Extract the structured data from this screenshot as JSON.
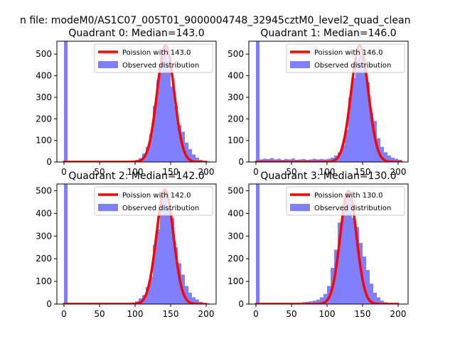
{
  "suptitle": "n file: modeM0/AS1C07_005T01_9000004748_32945cztM0_level2_quad_clean",
  "colors": {
    "hist": "#8080ff",
    "fit": "#ff0000",
    "frame": "#000000"
  },
  "chart_data": [
    {
      "type": "bar",
      "title": "Quadrant 0: Median=143.0",
      "legend": [
        "Poission with 143.0",
        "Observed distribution"
      ],
      "legend_position": "top-right",
      "xlim": [
        -10,
        214
      ],
      "ylim": [
        0,
        560
      ],
      "xticks": [
        0,
        50,
        100,
        150,
        200
      ],
      "xtick_labels": [
        "0",
        "50",
        "100",
        "150",
        "200"
      ],
      "yticks": [
        0,
        100,
        200,
        300,
        400,
        500
      ],
      "ytick_labels": [
        "0",
        "100",
        "200",
        "300",
        "400",
        "500"
      ],
      "bin_width": 5,
      "bins": [
        {
          "x": 0,
          "y": 560
        },
        {
          "x": 100,
          "y": 10
        },
        {
          "x": 105,
          "y": 18
        },
        {
          "x": 110,
          "y": 40
        },
        {
          "x": 115,
          "y": 70
        },
        {
          "x": 120,
          "y": 130
        },
        {
          "x": 125,
          "y": 260
        },
        {
          "x": 130,
          "y": 380
        },
        {
          "x": 135,
          "y": 500
        },
        {
          "x": 140,
          "y": 540
        },
        {
          "x": 145,
          "y": 470
        },
        {
          "x": 150,
          "y": 350
        },
        {
          "x": 155,
          "y": 260
        },
        {
          "x": 160,
          "y": 170
        },
        {
          "x": 165,
          "y": 140
        },
        {
          "x": 170,
          "y": 90
        },
        {
          "x": 175,
          "y": 60
        },
        {
          "x": 180,
          "y": 35
        },
        {
          "x": 185,
          "y": 20
        },
        {
          "x": 190,
          "y": 10
        },
        {
          "x": 195,
          "y": 5
        },
        {
          "x": 200,
          "y": 3
        }
      ],
      "fit": {
        "lambda": 143.0,
        "peak": 540,
        "x_range": [
          0,
          200
        ]
      }
    },
    {
      "type": "bar",
      "title": "Quadrant 1: Median=146.0",
      "legend": [
        "Poission with 146.0",
        "Observed distribution"
      ],
      "legend_position": "top-right",
      "xlim": [
        -10,
        214
      ],
      "ylim": [
        0,
        560
      ],
      "xticks": [
        0,
        50,
        100,
        150,
        200
      ],
      "xtick_labels": [
        "0",
        "50",
        "100",
        "150",
        "200"
      ],
      "yticks": [
        0,
        100,
        200,
        300,
        400,
        500
      ],
      "ytick_labels": [
        "0",
        "100",
        "200",
        "300",
        "400",
        "500"
      ],
      "bin_width": 5,
      "bins": [
        {
          "x": 0,
          "y": 560
        },
        {
          "x": 5,
          "y": 12
        },
        {
          "x": 10,
          "y": 15
        },
        {
          "x": 15,
          "y": 14
        },
        {
          "x": 20,
          "y": 18
        },
        {
          "x": 25,
          "y": 12
        },
        {
          "x": 30,
          "y": 15
        },
        {
          "x": 35,
          "y": 10
        },
        {
          "x": 40,
          "y": 14
        },
        {
          "x": 45,
          "y": 12
        },
        {
          "x": 50,
          "y": 16
        },
        {
          "x": 55,
          "y": 10
        },
        {
          "x": 60,
          "y": 12
        },
        {
          "x": 65,
          "y": 14
        },
        {
          "x": 70,
          "y": 10
        },
        {
          "x": 75,
          "y": 12
        },
        {
          "x": 80,
          "y": 15
        },
        {
          "x": 85,
          "y": 12
        },
        {
          "x": 90,
          "y": 14
        },
        {
          "x": 95,
          "y": 12
        },
        {
          "x": 100,
          "y": 15
        },
        {
          "x": 105,
          "y": 20
        },
        {
          "x": 110,
          "y": 30
        },
        {
          "x": 115,
          "y": 45
        },
        {
          "x": 120,
          "y": 80
        },
        {
          "x": 125,
          "y": 150
        },
        {
          "x": 130,
          "y": 300
        },
        {
          "x": 135,
          "y": 390
        },
        {
          "x": 140,
          "y": 480
        },
        {
          "x": 145,
          "y": 520
        },
        {
          "x": 150,
          "y": 460
        },
        {
          "x": 155,
          "y": 370
        },
        {
          "x": 160,
          "y": 230
        },
        {
          "x": 165,
          "y": 190
        },
        {
          "x": 170,
          "y": 110
        },
        {
          "x": 175,
          "y": 70
        },
        {
          "x": 180,
          "y": 45
        },
        {
          "x": 185,
          "y": 30
        },
        {
          "x": 190,
          "y": 20
        },
        {
          "x": 195,
          "y": 15
        },
        {
          "x": 200,
          "y": 10
        }
      ],
      "fit": {
        "lambda": 146.0,
        "peak": 540,
        "x_range": [
          0,
          205
        ]
      }
    },
    {
      "type": "bar",
      "title": "Quadrant 2: Median=142.0",
      "legend": [
        "Poission with 142.0",
        "Observed distribution"
      ],
      "legend_position": "top-right",
      "xlim": [
        -10,
        214
      ],
      "ylim": [
        0,
        530
      ],
      "xticks": [
        0,
        50,
        100,
        150,
        200
      ],
      "xtick_labels": [
        "0",
        "50",
        "100",
        "150",
        "200"
      ],
      "yticks": [
        0,
        100,
        200,
        300,
        400,
        500
      ],
      "ytick_labels": [
        "0",
        "100",
        "200",
        "300",
        "400",
        "500"
      ],
      "bin_width": 5,
      "bins": [
        {
          "x": 0,
          "y": 530
        },
        {
          "x": 100,
          "y": 12
        },
        {
          "x": 105,
          "y": 25
        },
        {
          "x": 110,
          "y": 40
        },
        {
          "x": 115,
          "y": 75
        },
        {
          "x": 120,
          "y": 120
        },
        {
          "x": 125,
          "y": 260
        },
        {
          "x": 130,
          "y": 330
        },
        {
          "x": 135,
          "y": 470
        },
        {
          "x": 140,
          "y": 500
        },
        {
          "x": 145,
          "y": 430
        },
        {
          "x": 150,
          "y": 380
        },
        {
          "x": 155,
          "y": 250
        },
        {
          "x": 160,
          "y": 180
        },
        {
          "x": 165,
          "y": 130
        },
        {
          "x": 170,
          "y": 80
        },
        {
          "x": 175,
          "y": 50
        },
        {
          "x": 180,
          "y": 30
        },
        {
          "x": 185,
          "y": 20
        },
        {
          "x": 190,
          "y": 10
        },
        {
          "x": 195,
          "y": 5
        },
        {
          "x": 200,
          "y": 3
        }
      ],
      "fit": {
        "lambda": 142.0,
        "peak": 505,
        "x_range": [
          0,
          200
        ]
      }
    },
    {
      "type": "bar",
      "title": "Quadrant 3: Median=130.0",
      "legend": [
        "Poission with 130.0",
        "Observed distribution"
      ],
      "legend_position": "top-right",
      "xlim": [
        -10,
        214
      ],
      "ylim": [
        0,
        530
      ],
      "xticks": [
        0,
        50,
        100,
        150,
        200
      ],
      "xtick_labels": [
        "0",
        "50",
        "100",
        "150",
        "200"
      ],
      "yticks": [
        0,
        100,
        200,
        300,
        400,
        500
      ],
      "ytick_labels": [
        "0",
        "100",
        "200",
        "300",
        "400",
        "500"
      ],
      "bin_width": 5,
      "bins": [
        {
          "x": 0,
          "y": 530
        },
        {
          "x": 60,
          "y": 5
        },
        {
          "x": 65,
          "y": 8
        },
        {
          "x": 70,
          "y": 10
        },
        {
          "x": 75,
          "y": 12
        },
        {
          "x": 80,
          "y": 15
        },
        {
          "x": 85,
          "y": 20
        },
        {
          "x": 90,
          "y": 30
        },
        {
          "x": 95,
          "y": 45
        },
        {
          "x": 100,
          "y": 80
        },
        {
          "x": 105,
          "y": 160
        },
        {
          "x": 110,
          "y": 240
        },
        {
          "x": 115,
          "y": 360
        },
        {
          "x": 120,
          "y": 440
        },
        {
          "x": 125,
          "y": 490
        },
        {
          "x": 130,
          "y": 470
        },
        {
          "x": 135,
          "y": 380
        },
        {
          "x": 140,
          "y": 340
        },
        {
          "x": 145,
          "y": 270
        },
        {
          "x": 150,
          "y": 210
        },
        {
          "x": 155,
          "y": 150
        },
        {
          "x": 160,
          "y": 90
        },
        {
          "x": 165,
          "y": 50
        },
        {
          "x": 170,
          "y": 30
        },
        {
          "x": 175,
          "y": 15
        },
        {
          "x": 180,
          "y": 8
        }
      ],
      "fit": {
        "lambda": 130.0,
        "peak": 500,
        "x_range": [
          0,
          200
        ]
      }
    }
  ]
}
